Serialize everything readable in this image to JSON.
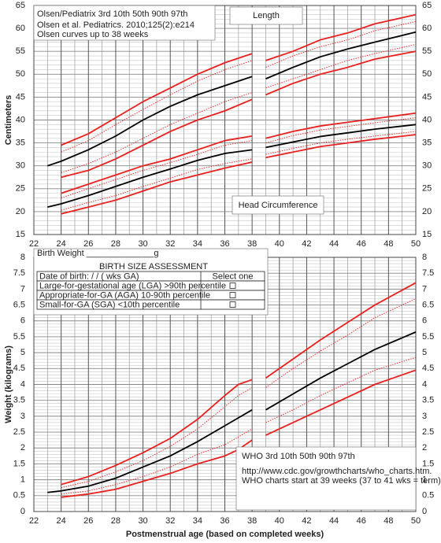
{
  "chart_data": [
    {
      "type": "line",
      "title": "Olsen/Pediatrix 3rd 10th 50th 90th 97th",
      "y_label": "Centimeters",
      "annotations": [
        "Olsen et al. Pediatrics. 2010;125(2):e214",
        "Olsen curves up to 38 weeks",
        "Length",
        "Head Circumference"
      ],
      "xlim": [
        22,
        50
      ],
      "xticks": [
        22,
        24,
        26,
        28,
        30,
        32,
        34,
        36,
        38,
        40,
        42,
        44,
        46,
        48,
        50
      ],
      "ylim": [
        15,
        65
      ],
      "yticks": [
        15,
        20,
        25,
        30,
        35,
        40,
        45,
        50,
        55,
        60,
        65
      ],
      "grid": true,
      "series": [
        {
          "color": "#e8201e",
          "style": "solid",
          "x": [
            24,
            26,
            28,
            30,
            32,
            34,
            36,
            38
          ],
          "values": [
            34.5,
            37,
            40.5,
            44,
            47,
            50,
            52.5,
            54.5
          ]
        },
        {
          "color": "#e8201e",
          "style": "dotted",
          "x": [
            24,
            26,
            28,
            30,
            32,
            34,
            36,
            38
          ],
          "values": [
            33,
            35.5,
            39,
            42.3,
            45.5,
            48.5,
            51,
            53
          ]
        },
        {
          "color": "#000000",
          "style": "solid",
          "x": [
            23,
            24,
            26,
            28,
            30,
            32,
            34,
            36,
            38
          ],
          "values": [
            30,
            31,
            33.5,
            36.5,
            40,
            43,
            45.5,
            47.5,
            49.5
          ]
        },
        {
          "color": "#e8201e",
          "style": "dotted",
          "x": [
            24,
            26,
            28,
            30,
            32,
            34,
            36,
            38
          ],
          "values": [
            28.5,
            30.5,
            33,
            36,
            39,
            41.5,
            44,
            46
          ]
        },
        {
          "color": "#e8201e",
          "style": "solid",
          "x": [
            24,
            26,
            28,
            30,
            32,
            34,
            36,
            38
          ],
          "values": [
            27.5,
            29,
            31.5,
            34.5,
            37.5,
            40,
            42,
            44.5
          ]
        },
        {
          "color": "#e8201e",
          "style": "solid",
          "x": [
            24,
            26,
            28,
            30,
            32,
            34,
            36,
            38
          ],
          "values": [
            24,
            26,
            28,
            30,
            31.5,
            33.5,
            35.5,
            36.5
          ]
        },
        {
          "color": "#e8201e",
          "style": "dotted",
          "x": [
            24,
            26,
            28,
            30,
            32,
            34,
            36,
            38
          ],
          "values": [
            23,
            25,
            27,
            29,
            30.7,
            32.5,
            34.5,
            35.5
          ]
        },
        {
          "color": "#000000",
          "style": "solid",
          "x": [
            23,
            24,
            26,
            28,
            30,
            32,
            34,
            36,
            38
          ],
          "values": [
            21,
            21.7,
            23.5,
            25.5,
            27.5,
            29.3,
            31.2,
            32.7,
            33.5
          ]
        },
        {
          "color": "#e8201e",
          "style": "dotted",
          "x": [
            24,
            26,
            28,
            30,
            32,
            34,
            36,
            38
          ],
          "values": [
            20.3,
            22,
            23.5,
            25.5,
            27.3,
            29.2,
            30.5,
            31.5
          ]
        },
        {
          "color": "#e8201e",
          "style": "solid",
          "x": [
            24,
            26,
            28,
            30,
            32,
            34,
            36,
            38
          ],
          "values": [
            19.5,
            21,
            22.5,
            24.5,
            26.5,
            28,
            29.5,
            30.8
          ]
        },
        {
          "color": "#e8201e",
          "style": "solid",
          "x": [
            39,
            41,
            43,
            45,
            47,
            50
          ],
          "values": [
            53,
            55,
            57.5,
            59,
            61,
            63
          ]
        },
        {
          "color": "#e8201e",
          "style": "dotted",
          "x": [
            39,
            41,
            43,
            45,
            47,
            50
          ],
          "values": [
            51.5,
            54,
            56,
            57.5,
            59.5,
            61.5
          ]
        },
        {
          "color": "#000000",
          "style": "solid",
          "x": [
            39,
            41,
            43,
            45,
            47,
            50
          ],
          "values": [
            49,
            51.5,
            53.8,
            55.5,
            57,
            59.2
          ]
        },
        {
          "color": "#e8201e",
          "style": "dotted",
          "x": [
            39,
            41,
            43,
            45,
            47,
            50
          ],
          "values": [
            47,
            49,
            51,
            53,
            54.5,
            56.5
          ]
        },
        {
          "color": "#e8201e",
          "style": "solid",
          "x": [
            39,
            41,
            43,
            45,
            47,
            50
          ],
          "values": [
            45.5,
            48,
            50,
            51.5,
            53.3,
            55
          ]
        },
        {
          "color": "#e8201e",
          "style": "solid",
          "x": [
            39,
            41,
            43,
            45,
            47,
            50
          ],
          "values": [
            36,
            37.5,
            38.7,
            39.5,
            40.3,
            41.5
          ]
        },
        {
          "color": "#e8201e",
          "style": "dotted",
          "x": [
            39,
            41,
            43,
            45,
            47,
            50
          ],
          "values": [
            35,
            36.6,
            37.8,
            38.6,
            39.4,
            40.5
          ]
        },
        {
          "color": "#000000",
          "style": "solid",
          "x": [
            39,
            41,
            43,
            45,
            47,
            50
          ],
          "values": [
            34,
            35.2,
            36.4,
            37.2,
            38,
            39
          ]
        },
        {
          "color": "#e8201e",
          "style": "dotted",
          "x": [
            39,
            41,
            43,
            45,
            47,
            50
          ],
          "values": [
            32.5,
            33.8,
            35,
            35.8,
            36.5,
            37.5
          ]
        },
        {
          "color": "#e8201e",
          "style": "solid",
          "x": [
            39,
            41,
            43,
            45,
            47,
            50
          ],
          "values": [
            31.8,
            33,
            34.2,
            35,
            35.8,
            36.8
          ]
        }
      ]
    },
    {
      "type": "line",
      "title": "WHO 3rd 10th 50th 90th 97th",
      "y_label": "Weight (kilograms)",
      "x_label": "Postmenstrual age (based on completed weeks)",
      "annotations": [
        "http://www.cdc.gov/growthcharts/who_charts.htm.",
        "WHO  charts start at 39 weeks  (37 to 41 wks = term)"
      ],
      "xlim": [
        22,
        50
      ],
      "xticks": [
        22,
        24,
        26,
        28,
        30,
        32,
        34,
        36,
        38,
        40,
        42,
        44,
        46,
        48,
        50
      ],
      "ylim": [
        0,
        8
      ],
      "yticks": [
        0,
        0.5,
        1,
        1.5,
        2,
        2.5,
        3,
        3.5,
        4,
        4.5,
        5,
        5.5,
        6,
        6.5,
        7,
        7.5,
        8
      ],
      "grid": true,
      "series": [
        {
          "color": "#e8201e",
          "style": "solid",
          "x": [
            24,
            26,
            28,
            30,
            32,
            34,
            36,
            37,
            38
          ],
          "values": [
            0.85,
            1.1,
            1.45,
            1.85,
            2.3,
            2.9,
            3.65,
            4.0,
            4.15
          ]
        },
        {
          "color": "#e8201e",
          "style": "dotted",
          "x": [
            24,
            26,
            28,
            30,
            32,
            34,
            36,
            37,
            38
          ],
          "values": [
            0.75,
            0.95,
            1.25,
            1.6,
            2.05,
            2.6,
            3.3,
            3.65,
            3.9
          ]
        },
        {
          "color": "#000000",
          "style": "solid",
          "x": [
            23,
            24,
            26,
            28,
            30,
            32,
            34,
            36,
            37,
            38
          ],
          "values": [
            0.6,
            0.65,
            0.8,
            1.05,
            1.4,
            1.75,
            2.2,
            2.7,
            2.95,
            3.2
          ]
        },
        {
          "color": "#e8201e",
          "style": "dotted",
          "x": [
            24,
            26,
            28,
            30,
            32,
            34,
            36,
            37,
            38
          ],
          "values": [
            0.55,
            0.65,
            0.85,
            1.1,
            1.4,
            1.8,
            2.1,
            2.35,
            2.6
          ]
        },
        {
          "color": "#e8201e",
          "style": "solid",
          "x": [
            24,
            26,
            28,
            30,
            32,
            34,
            36,
            37,
            38
          ],
          "values": [
            0.45,
            0.55,
            0.7,
            0.95,
            1.2,
            1.5,
            1.75,
            1.95,
            2.25
          ]
        },
        {
          "color": "#e8201e",
          "style": "solid",
          "x": [
            39,
            41,
            43,
            45,
            47,
            50
          ],
          "values": [
            4.2,
            4.8,
            5.4,
            5.95,
            6.5,
            7.2
          ]
        },
        {
          "color": "#e8201e",
          "style": "dotted",
          "x": [
            39,
            41,
            43,
            45,
            47,
            50
          ],
          "values": [
            3.9,
            4.5,
            5.05,
            5.55,
            6.1,
            6.7
          ]
        },
        {
          "color": "#000000",
          "style": "solid",
          "x": [
            39,
            41,
            43,
            45,
            47,
            50
          ],
          "values": [
            3.2,
            3.7,
            4.2,
            4.65,
            5.1,
            5.65
          ]
        },
        {
          "color": "#e8201e",
          "style": "dotted",
          "x": [
            39,
            41,
            43,
            45,
            47,
            50
          ],
          "values": [
            2.8,
            3.2,
            3.65,
            4.05,
            4.45,
            4.85
          ]
        },
        {
          "color": "#e8201e",
          "style": "solid",
          "x": [
            39,
            41,
            43,
            45,
            47,
            50
          ],
          "values": [
            2.4,
            2.8,
            3.2,
            3.6,
            4.0,
            4.45
          ]
        }
      ]
    }
  ],
  "birth_weight_label": "Birth Weight ______________g",
  "birth_size_assessment": {
    "title": "BIRTH SIZE ASSESSMENT",
    "rows": [
      [
        "Date of birth:        /        /          (          wks GA)",
        "Select one"
      ],
      [
        "Large-for-gestational age (LGA)   >90th percentile"
      ],
      [
        "Appropriate-for-GA (AGA)  10-90th percentile"
      ],
      [
        "Small-for-GA (SGA)  <10th percentile"
      ]
    ]
  }
}
